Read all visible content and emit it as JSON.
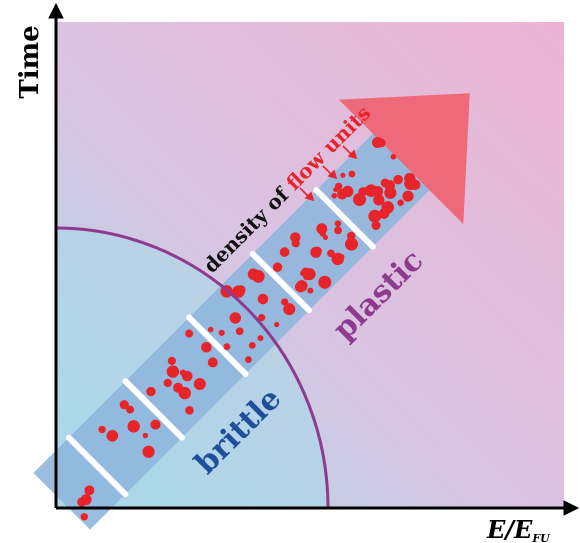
{
  "axes": {
    "y_label": "Time",
    "x_label_main": "E/E",
    "x_label_sub": "FU"
  },
  "regions": {
    "brittle": "brittle",
    "plastic": "plastic"
  },
  "annotation": {
    "prefix": "density of ",
    "highlight": "flow units"
  },
  "colors": {
    "background_top_right": "#e9b6d4",
    "background_bottom_left": "#a9dbe9",
    "boundary": "#8e3a8e",
    "brittle_text": "#1f4f9a",
    "plastic_text": "#8e3a8e",
    "band": "#8fb6dd",
    "arrow_head": "#ee6a7a",
    "dots": "#e8242b",
    "annotation_highlight": "#e8242b",
    "axis": "#000000"
  }
}
